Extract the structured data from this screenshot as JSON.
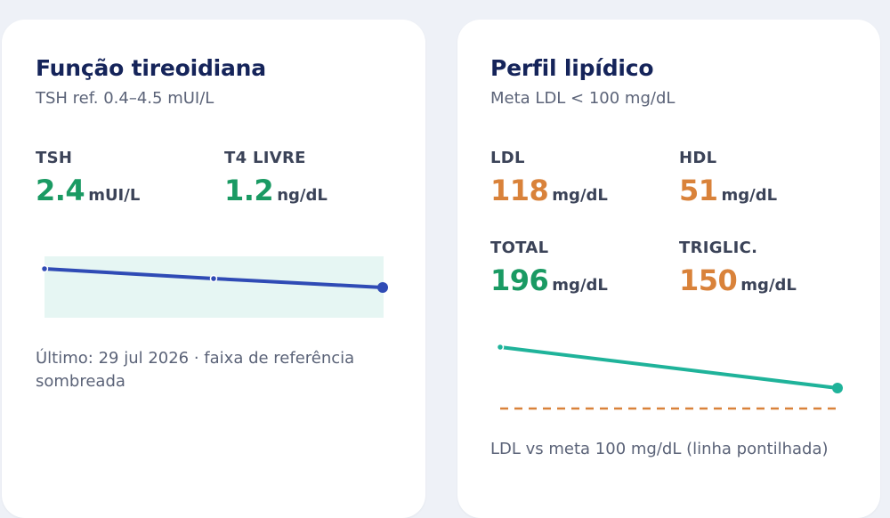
{
  "thyroid_card": {
    "title": "Função tireoidiana",
    "subtitle": "TSH ref. 0.4–4.5 mUI/L",
    "metrics": [
      {
        "label": "TSH",
        "value": "2.4",
        "unit": "mUI/L"
      },
      {
        "label": "T4 LIVRE",
        "value": "1.2",
        "unit": "ng/dL"
      }
    ],
    "footnote": "Último: 29 jul 2026 · faixa de referência sombreada"
  },
  "lipid_card": {
    "title": "Perfil lipídico",
    "subtitle": "Meta LDL < 100 mg/dL",
    "metrics": [
      {
        "label": "LDL",
        "value": "118",
        "unit": "mg/dL"
      },
      {
        "label": "HDL",
        "value": "51",
        "unit": "mg/dL"
      },
      {
        "label": "TOTAL",
        "value": "196",
        "unit": "mg/dL"
      },
      {
        "label": "TRIGLIC.",
        "value": "150",
        "unit": "mg/dL"
      }
    ],
    "footnote": "LDL vs meta 100 mg/dL (linha pontilhada)"
  },
  "colors": {
    "navy": "#15245a",
    "text_muted": "#5b6378",
    "label": "#3b4358",
    "green": "#1a9a63",
    "orange": "#d9823a",
    "tsh_line": "#2f4bb5",
    "ref_band": "#e6f6f3",
    "ldl_line": "#1fb39a",
    "target_line": "#d9823a"
  }
}
